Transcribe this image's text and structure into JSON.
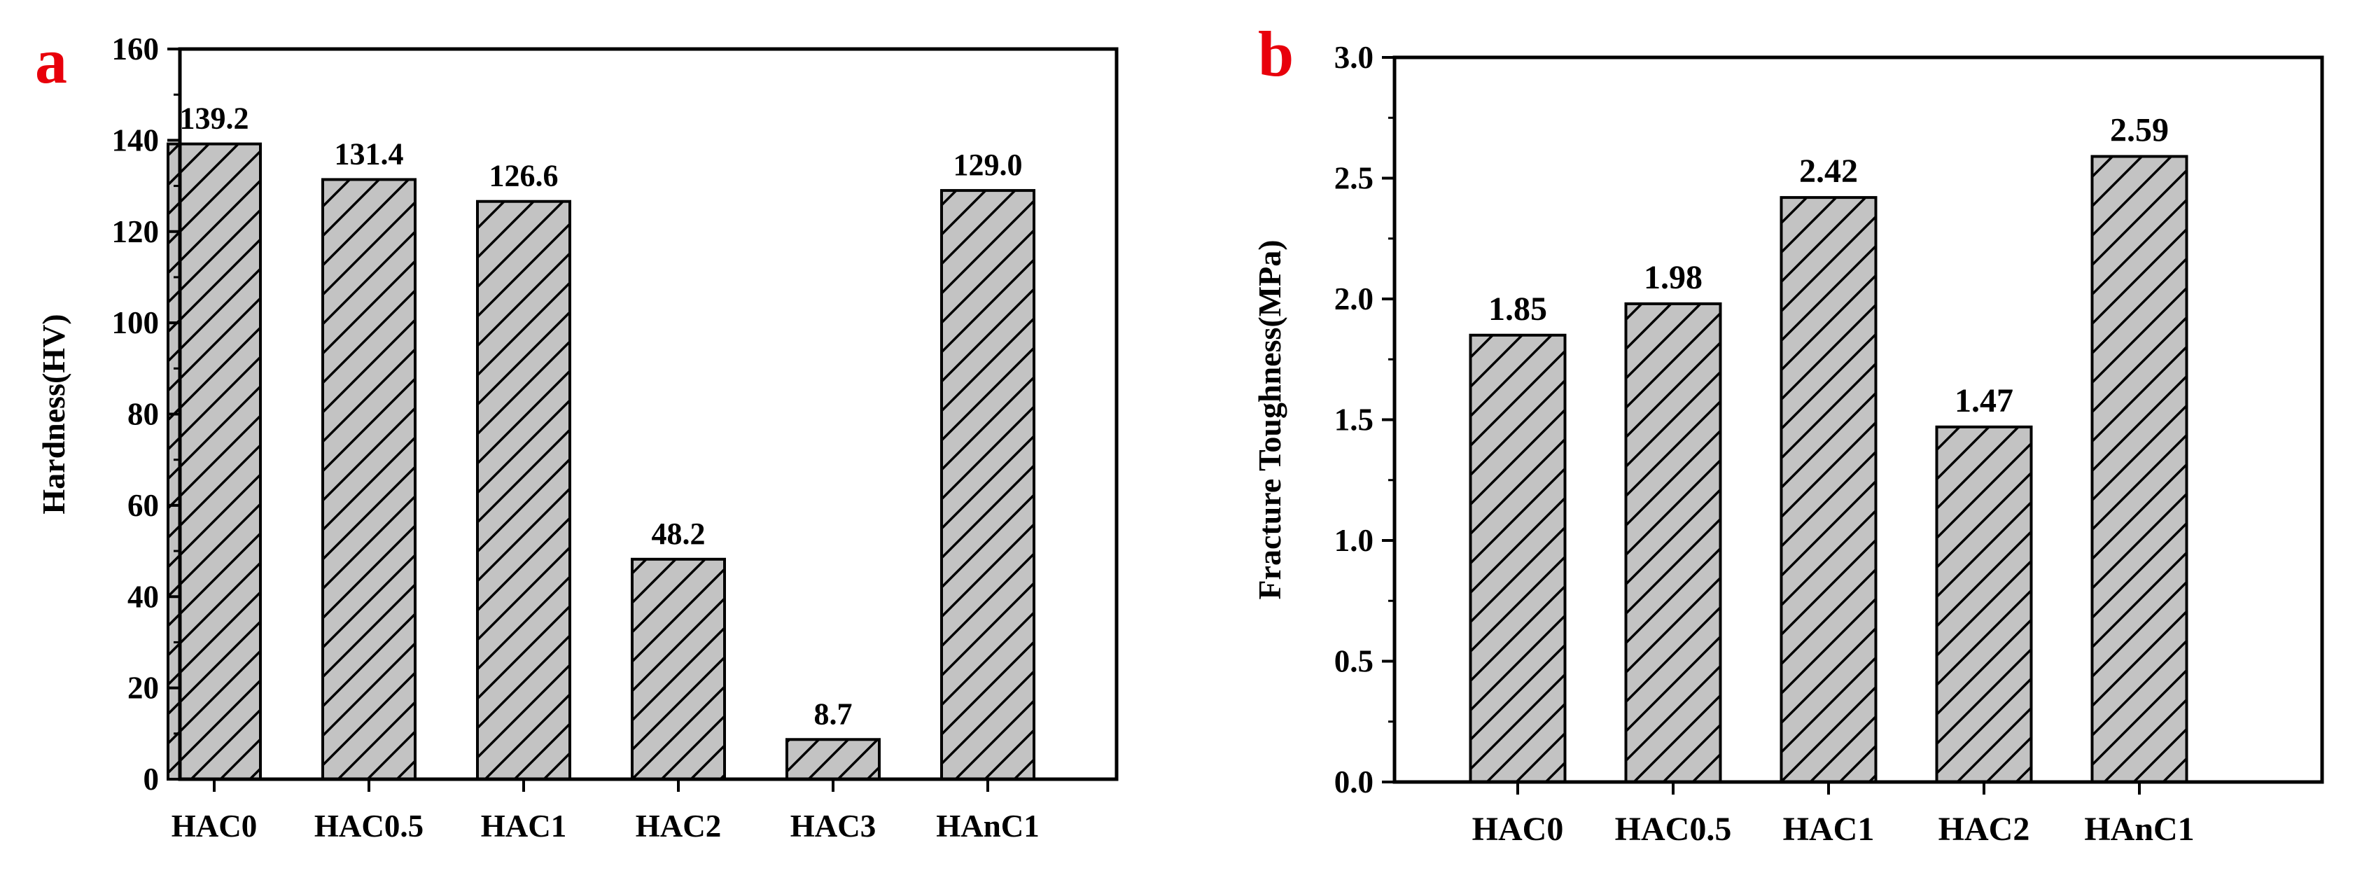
{
  "chart_data": [
    {
      "panel": "a",
      "type": "bar",
      "ylabel": "Hardness(HV)",
      "xlabel": "",
      "categories": [
        "HAC0",
        "HAC0.5",
        "HAC1",
        "HAC2",
        "HAC3",
        "HAnC1"
      ],
      "values": [
        139.2,
        131.4,
        126.6,
        48.2,
        8.7,
        129.0
      ],
      "value_labels": [
        "139.2",
        "131.4",
        "126.6",
        "48.2",
        "8.7",
        "129.0"
      ],
      "ylim": [
        0,
        160
      ],
      "yticks": [
        0,
        20,
        40,
        60,
        80,
        100,
        120,
        140,
        160
      ],
      "ytick_labels": [
        "0",
        "20",
        "40",
        "60",
        "80",
        "100",
        "120",
        "140",
        "160"
      ],
      "grid": false,
      "bar_fill": "#c3c3c3",
      "hatch": "diagonal"
    },
    {
      "panel": "b",
      "type": "bar",
      "ylabel": "Fracture Toughness(MPa)",
      "xlabel": "",
      "categories": [
        "HAC0",
        "HAC0.5",
        "HAC1",
        "HAC2",
        "HAnC1"
      ],
      "values": [
        1.85,
        1.98,
        2.42,
        1.47,
        2.59
      ],
      "value_labels": [
        "1.85",
        "1.98",
        "2.42",
        "1.47",
        "2.59"
      ],
      "ylim": [
        0,
        3.0
      ],
      "yticks": [
        0,
        0.5,
        1.0,
        1.5,
        2.0,
        2.5,
        3.0
      ],
      "ytick_labels": [
        "0.0",
        "0.5",
        "1.0",
        "1.5",
        "2.0",
        "2.5",
        "3.0"
      ],
      "grid": false,
      "bar_fill": "#c3c3c3",
      "hatch": "diagonal"
    }
  ],
  "colors": {
    "panel_letter": "#e8000b",
    "bar_fill": "#c3c3c3",
    "axis": "#000000"
  }
}
